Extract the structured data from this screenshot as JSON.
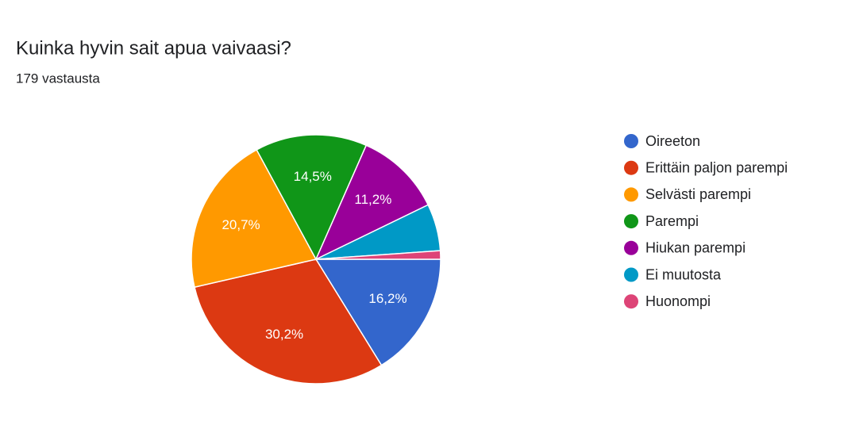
{
  "chart_data": {
    "type": "pie",
    "title": "Kuinka hyvin sait apua vaivaasi?",
    "subtitle": "179 vastausta",
    "categories": [
      "Oireeton",
      "Erittäin paljon parempi",
      "Selvästi parempi",
      "Parempi",
      "Hiukan parempi",
      "Ei muutosta",
      "Huonompi"
    ],
    "values": [
      16.2,
      30.2,
      20.7,
      14.5,
      11.2,
      6.1,
      1.1
    ],
    "value_labels": [
      "16,2%",
      "30,2%",
      "20,7%",
      "14,5%",
      "11,2%",
      null,
      null
    ],
    "colors": [
      "#3366cc",
      "#dc3912",
      "#ff9900",
      "#109618",
      "#990099",
      "#0099c6",
      "#dd4477"
    ],
    "legend": "right"
  }
}
